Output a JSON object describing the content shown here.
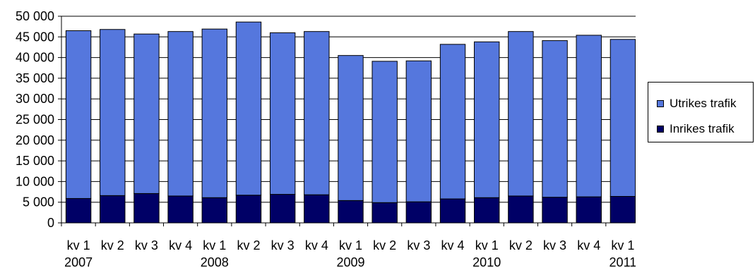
{
  "chart_data": {
    "type": "bar",
    "stacked": true,
    "categories": [
      "kv 1",
      "kv 2",
      "kv 3",
      "kv 4",
      "kv 1",
      "kv 2",
      "kv 3",
      "kv 4",
      "kv 1",
      "kv 2",
      "kv 3",
      "kv 4",
      "kv 1",
      "kv 2",
      "kv 3",
      "kv 4",
      "kv 1"
    ],
    "years": [
      {
        "label": "2007",
        "index": 0
      },
      {
        "label": "2008",
        "index": 4
      },
      {
        "label": "2009",
        "index": 8
      },
      {
        "label": "2010",
        "index": 12
      },
      {
        "label": "2011",
        "index": 16
      }
    ],
    "series": [
      {
        "name": "Inrikes trafik",
        "color": "#000066",
        "values": [
          5900,
          6600,
          7100,
          6500,
          6100,
          6700,
          6900,
          6800,
          5400,
          4900,
          5100,
          5800,
          6100,
          6500,
          6200,
          6300,
          6400
        ]
      },
      {
        "name": "Utrikes trafik",
        "color": "#5577DD",
        "values": [
          40600,
          40200,
          38600,
          39800,
          40800,
          41900,
          39100,
          39500,
          35100,
          34200,
          34100,
          37400,
          37700,
          39800,
          37900,
          39100,
          38000
        ]
      }
    ],
    "ylim": [
      0,
      50000
    ],
    "yticks": [
      0,
      5000,
      10000,
      15000,
      20000,
      25000,
      30000,
      35000,
      40000,
      45000,
      50000
    ],
    "ytick_labels": [
      "0",
      "5 000",
      "10 000",
      "15 000",
      "20 000",
      "25 000",
      "30 000",
      "35 000",
      "40 000",
      "45 000",
      "50 000"
    ],
    "grid": true,
    "legend_position": "right"
  },
  "legend": {
    "items": [
      {
        "label": "Utrikes trafik",
        "color": "#5577DD"
      },
      {
        "label": "Inrikes trafik",
        "color": "#000066"
      }
    ]
  }
}
